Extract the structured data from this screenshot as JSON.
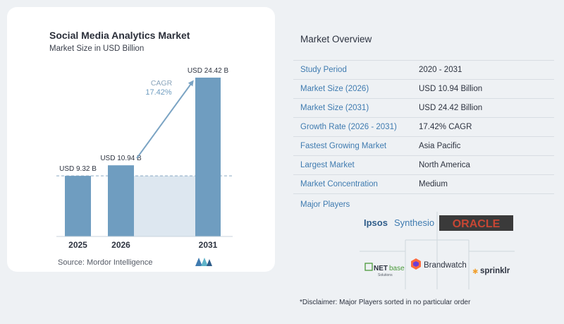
{
  "chart_data": {
    "type": "bar",
    "title": "Social Media Analytics Market",
    "subtitle": "Market Size in USD Billion",
    "categories": [
      "2025",
      "2026",
      "2031"
    ],
    "values": [
      9.32,
      10.94,
      24.42
    ],
    "value_labels": [
      "USD 9.32 B",
      "USD 10.94 B",
      "USD 24.42 B"
    ],
    "ylim": [
      0,
      25.5
    ],
    "cagr_label": "CAGR",
    "cagr_value": "17.42%",
    "bar_color": "#6f9dc0",
    "accent_color": "#7aa3c3"
  },
  "source": "Source:  Mordor Intelligence",
  "overview": {
    "title": "Market Overview",
    "rows": [
      {
        "label": "Study Period",
        "value": "2020 - 2031"
      },
      {
        "label": "Market Size (2026)",
        "value": "USD 10.94 Billion"
      },
      {
        "label": "Market Size (2031)",
        "value": "USD 24.42 Billion"
      },
      {
        "label": "Growth Rate (2026 - 2031)",
        "value": "17.42% CAGR"
      },
      {
        "label": "Fastest Growing Market",
        "value": "Asia Pacific"
      },
      {
        "label": "Largest Market",
        "value": "North America"
      },
      {
        "label": "Market Concentration",
        "value": "Medium"
      }
    ]
  },
  "players": {
    "title": "Major Players",
    "ipsos": "Ipsos",
    "synthesio": "Synthesio",
    "oracle": "ORACLE",
    "netbase_net": "NET",
    "netbase_base": "base",
    "netbase_sub": "Solutions",
    "brandwatch": "Brandwatch",
    "sprinklr": "sprinklr"
  },
  "disclaimer": "*Disclaimer: Major Players sorted in no particular order"
}
